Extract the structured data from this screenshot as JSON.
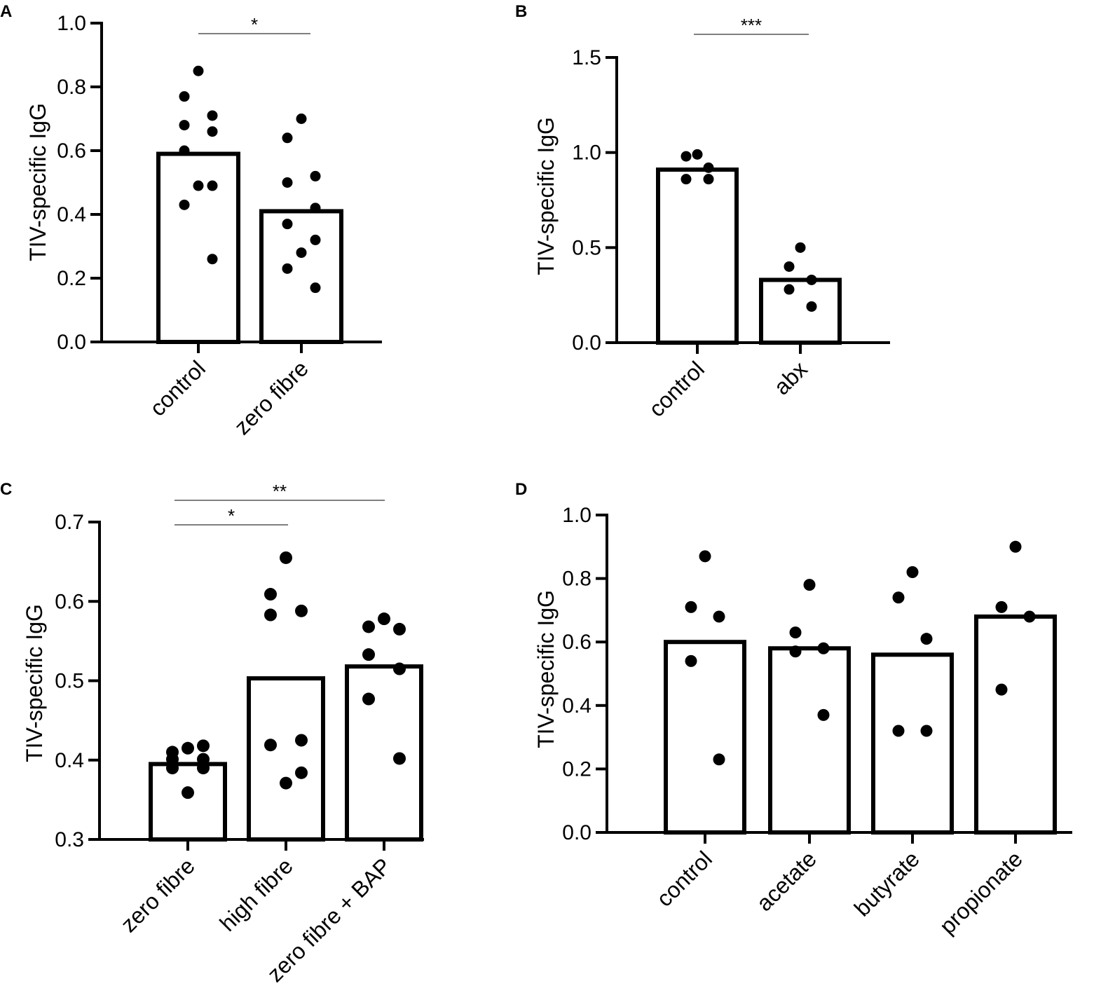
{
  "chart_data": [
    {
      "panel": "A",
      "type": "bar",
      "ylabel": "TIV-specific IgG",
      "ylim": [
        0,
        1.0
      ],
      "yticks": [
        0.0,
        0.2,
        0.4,
        0.6,
        0.8,
        1.0
      ],
      "ytick_labels": [
        "0.0",
        "0.2",
        "0.4",
        "0.6",
        "0.8",
        "1.0"
      ],
      "categories": [
        "control",
        "zero fibre"
      ],
      "values": [
        0.59,
        0.41
      ],
      "points": [
        [
          0.85,
          0.77,
          0.71,
          0.68,
          0.66,
          0.6,
          0.49,
          0.49,
          0.43,
          0.26
        ],
        [
          0.7,
          0.64,
          0.52,
          0.5,
          0.42,
          0.37,
          0.32,
          0.28,
          0.23,
          0.17
        ]
      ],
      "significance": [
        {
          "from": 0,
          "to": 1,
          "label": "*"
        }
      ]
    },
    {
      "panel": "B",
      "type": "bar",
      "ylabel": "TIV-specific IgG",
      "ylim": [
        0,
        1.5
      ],
      "yticks": [
        0.0,
        0.5,
        1.0,
        1.5
      ],
      "ytick_labels": [
        "0.0",
        "0.5",
        "1.0",
        "1.5"
      ],
      "categories": [
        "control",
        "abx"
      ],
      "values": [
        0.91,
        0.33
      ],
      "points": [
        [
          0.99,
          0.98,
          0.92,
          0.86,
          0.86
        ],
        [
          0.5,
          0.4,
          0.33,
          0.28,
          0.19
        ]
      ],
      "significance": [
        {
          "from": 0,
          "to": 1,
          "label": "***"
        }
      ]
    },
    {
      "panel": "C",
      "type": "bar",
      "ylabel": "TIV-specific IgG",
      "ylim": [
        0.3,
        0.7
      ],
      "yticks": [
        0.3,
        0.4,
        0.5,
        0.6,
        0.7
      ],
      "ytick_labels": [
        "0.3",
        "0.4",
        "0.5",
        "0.6",
        "0.7"
      ],
      "categories": [
        "zero fibre",
        "high fibre",
        "zero fibre + BAP"
      ],
      "values": [
        0.395,
        0.503,
        0.518
      ],
      "points": [
        [
          0.415,
          0.41,
          0.418,
          0.401,
          0.401,
          0.39,
          0.39,
          0.359
        ],
        [
          0.655,
          0.609,
          0.588,
          0.583,
          0.425,
          0.419,
          0.384,
          0.371
        ],
        [
          0.578,
          0.568,
          0.565,
          0.533,
          0.515,
          0.477,
          0.402
        ]
      ],
      "significance": [
        {
          "from": 0,
          "to": 1,
          "label": "*"
        },
        {
          "from": 0,
          "to": 2,
          "label": "**"
        }
      ]
    },
    {
      "panel": "D",
      "type": "bar",
      "ylabel": "TIV-specific IgG",
      "ylim": [
        0,
        1.0
      ],
      "yticks": [
        0.0,
        0.2,
        0.4,
        0.6,
        0.8,
        1.0
      ],
      "ytick_labels": [
        "0.0",
        "0.2",
        "0.4",
        "0.6",
        "0.8",
        "1.0"
      ],
      "categories": [
        "control",
        "acetate",
        "butyrate",
        "propionate"
      ],
      "values": [
        0.6,
        0.58,
        0.56,
        0.68
      ],
      "points": [
        [
          0.87,
          0.71,
          0.68,
          0.54,
          0.23
        ],
        [
          0.78,
          0.63,
          0.58,
          0.57,
          0.37
        ],
        [
          0.82,
          0.74,
          0.61,
          0.32,
          0.32
        ],
        [
          0.9,
          0.71,
          0.68,
          0.45
        ]
      ],
      "significance": []
    }
  ],
  "colors": {
    "ink": "#000000",
    "bar_fill": "#ffffff",
    "sig_line": "#555555"
  }
}
